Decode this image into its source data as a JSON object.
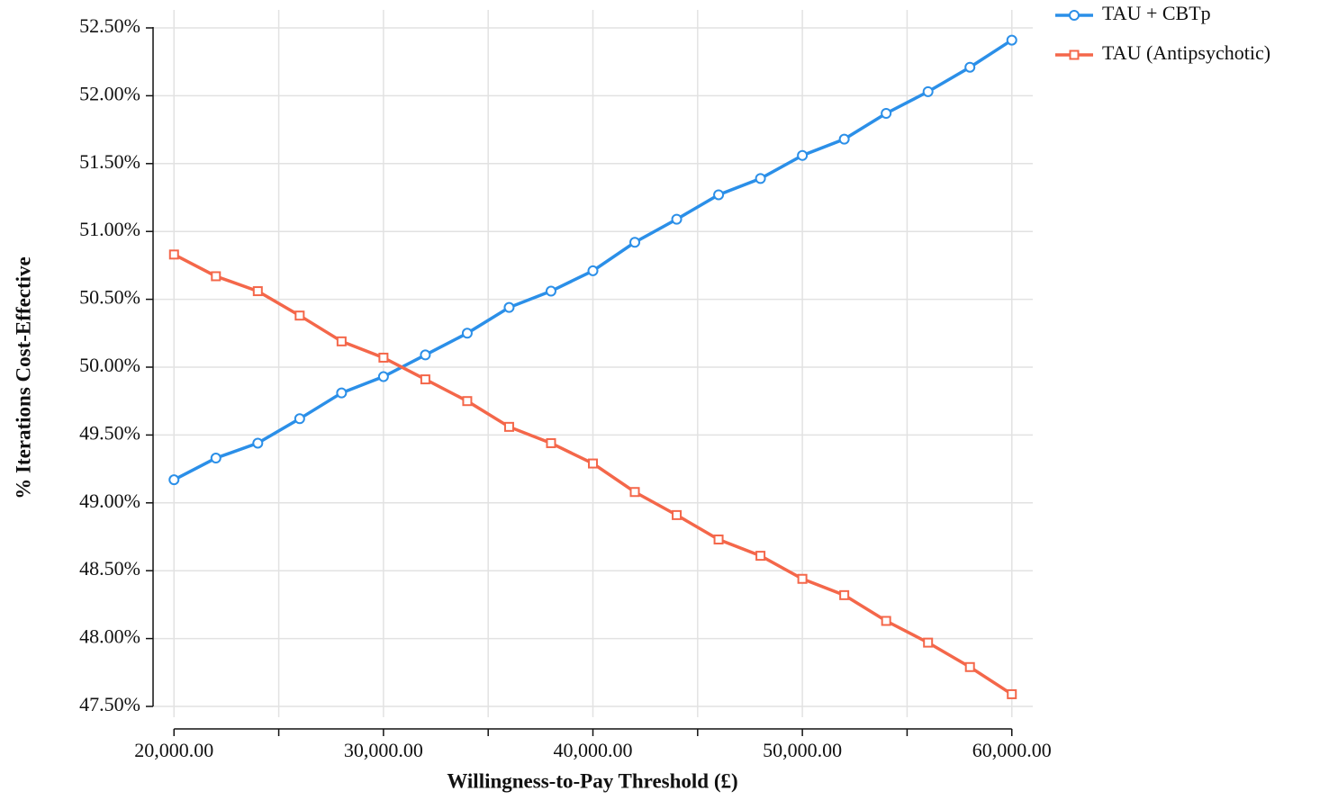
{
  "chart_data": {
    "type": "line",
    "x_label": "Willingness-to-Pay Threshold (£)",
    "y_label": "% Iterations Cost-Effective",
    "x": [
      20000,
      22000,
      24000,
      26000,
      28000,
      30000,
      32000,
      34000,
      36000,
      38000,
      40000,
      42000,
      44000,
      46000,
      48000,
      50000,
      52000,
      54000,
      56000,
      58000,
      60000
    ],
    "series": [
      {
        "name": "TAU + CBTp",
        "color": "#2b8fe8",
        "marker": "circle",
        "values": [
          49.17,
          49.33,
          49.44,
          49.62,
          49.81,
          49.93,
          50.09,
          50.25,
          50.44,
          50.56,
          50.71,
          50.92,
          51.09,
          51.27,
          51.39,
          51.56,
          51.68,
          51.87,
          52.03,
          52.21,
          52.41
        ]
      },
      {
        "name": "TAU (Antipsychotic)",
        "color": "#f4674a",
        "marker": "square",
        "values": [
          50.83,
          50.67,
          50.56,
          50.38,
          50.19,
          50.07,
          49.91,
          49.75,
          49.56,
          49.44,
          49.29,
          49.08,
          48.91,
          48.73,
          48.61,
          48.44,
          48.32,
          48.13,
          47.97,
          47.79,
          47.59
        ]
      }
    ],
    "xlim": [
      19000,
      61000
    ],
    "xticks": [
      {
        "value": 20000,
        "label": "20,000.00"
      },
      {
        "value": 30000,
        "label": "30,000.00"
      },
      {
        "value": 40000,
        "label": "40,000.00"
      },
      {
        "value": 50000,
        "label": "50,000.00"
      },
      {
        "value": 60000,
        "label": "60,000.00"
      }
    ],
    "x_minor_ticks": [
      25000,
      35000,
      45000,
      55000
    ],
    "ylim": [
      47.5,
      52.5
    ],
    "yticks": [
      {
        "value": 47.5,
        "label": "47.50%"
      },
      {
        "value": 48,
        "label": "48.00%"
      },
      {
        "value": 48.5,
        "label": "48.50%"
      },
      {
        "value": 49,
        "label": "49.00%"
      },
      {
        "value": 49.5,
        "label": "49.50%"
      },
      {
        "value": 50,
        "label": "50.00%"
      },
      {
        "value": 50.5,
        "label": "50.50%"
      },
      {
        "value": 51,
        "label": "51.00%"
      },
      {
        "value": 51.5,
        "label": "51.50%"
      },
      {
        "value": 52,
        "label": "52.00%"
      },
      {
        "value": 52.5,
        "label": "52.50%"
      }
    ],
    "grid": true,
    "legend": "top-right"
  }
}
